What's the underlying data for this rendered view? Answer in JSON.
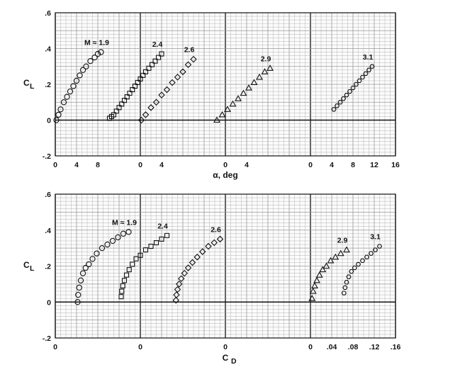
{
  "figure": {
    "background": "#ffffff",
    "grid_color": "#9a9a9a",
    "ink_color": "#111111"
  },
  "chart_data": [
    {
      "type": "scatter",
      "title": "",
      "ylabel": "C",
      "ylabel_sub": "L",
      "xlabel": "α, deg",
      "ylim": [
        -0.2,
        0.6
      ],
      "yticks": [
        ".6",
        ".4",
        ".2",
        "0",
        "-.2"
      ],
      "ytick_values": [
        0.6,
        0.4,
        0.2,
        0,
        -0.2
      ],
      "panels": [
        {
          "xlim": [
            0,
            16
          ],
          "ticks": [
            {
              "v": 0,
              "l": "0"
            },
            {
              "v": 4,
              "l": "4"
            },
            {
              "v": 8,
              "l": "8"
            }
          ]
        },
        {
          "xlim": [
            0,
            16
          ],
          "ticks": [
            {
              "v": 0,
              "l": "0"
            },
            {
              "v": 4,
              "l": "4"
            }
          ]
        },
        {
          "xlim": [
            0,
            16
          ],
          "ticks": [
            {
              "v": 0,
              "l": "0"
            },
            {
              "v": 4,
              "l": "4"
            }
          ]
        },
        {
          "xlim": [
            0,
            16
          ],
          "ticks": [
            {
              "v": 0,
              "l": "0"
            },
            {
              "v": 4,
              "l": "4"
            },
            {
              "v": 8,
              "l": "8"
            },
            {
              "v": 12,
              "l": "12"
            },
            {
              "v": 16,
              "l": "16"
            }
          ]
        }
      ],
      "grid": true,
      "series": [
        {
          "name": "M ≈ 1.9",
          "marker": "circle",
          "panel": 0,
          "x": [
            0.2,
            0.6,
            1.0,
            1.6,
            2.2,
            2.8,
            3.4,
            4.0,
            4.6,
            5.2,
            5.8,
            6.6,
            7.4,
            8.0,
            8.6
          ],
          "y": [
            0.0,
            0.03,
            0.06,
            0.1,
            0.13,
            0.16,
            0.19,
            0.22,
            0.25,
            0.28,
            0.3,
            0.33,
            0.35,
            0.37,
            0.38
          ]
        },
        {
          "name": "2.4",
          "marker": "square",
          "panel": 0,
          "x": [
            10.2,
            10.6,
            11.0,
            11.5,
            12.0,
            12.5,
            13.0,
            13.5,
            14.0,
            14.5,
            15.0,
            15.5,
            16.0,
            16.5,
            17.0,
            17.6,
            18.2,
            18.8,
            19.4,
            20.0
          ],
          "y": [
            0.01,
            0.02,
            0.03,
            0.05,
            0.07,
            0.09,
            0.11,
            0.13,
            0.15,
            0.17,
            0.19,
            0.21,
            0.23,
            0.25,
            0.27,
            0.29,
            0.31,
            0.33,
            0.35,
            0.37
          ]
        },
        {
          "name": "2.6",
          "marker": "diamond",
          "panel": 1,
          "x": [
            0.2,
            1.0,
            2.0,
            3.0,
            4.0,
            5.0,
            6.0,
            7.0,
            8.0,
            9.0,
            10.0
          ],
          "y": [
            0.0,
            0.03,
            0.07,
            0.1,
            0.14,
            0.17,
            0.21,
            0.24,
            0.27,
            0.31,
            0.34
          ]
        },
        {
          "name": "2.9",
          "marker": "triangle",
          "panel": 2,
          "x": [
            -1.6,
            -0.6,
            0.4,
            1.4,
            2.4,
            3.4,
            4.4,
            5.4,
            6.4,
            7.4,
            8.4
          ],
          "y": [
            0.0,
            0.03,
            0.06,
            0.09,
            0.12,
            0.15,
            0.18,
            0.21,
            0.24,
            0.27,
            0.29
          ]
        },
        {
          "name": "3.1",
          "marker": "hexagon",
          "panel": 3,
          "x": [
            4.4,
            5.0,
            5.6,
            6.2,
            6.8,
            7.4,
            8.0,
            8.6,
            9.2,
            9.8,
            10.4,
            11.0,
            11.6
          ],
          "y": [
            0.06,
            0.08,
            0.1,
            0.12,
            0.14,
            0.16,
            0.18,
            0.2,
            0.22,
            0.24,
            0.26,
            0.28,
            0.3
          ]
        }
      ]
    },
    {
      "type": "scatter",
      "title": "",
      "ylabel": "C",
      "ylabel_sub": "L",
      "xlabel": "C",
      "xlabel_sub": "D",
      "ylim": [
        -0.2,
        0.6
      ],
      "yticks": [
        ".6",
        ".4",
        ".2",
        "0",
        "-.2"
      ],
      "ytick_values": [
        0.6,
        0.4,
        0.2,
        0,
        -0.2
      ],
      "panels": [
        {
          "xlim": [
            0,
            0.16
          ],
          "ticks": [
            {
              "v": 0,
              "l": "0"
            }
          ]
        },
        {
          "xlim": [
            0,
            0.16
          ],
          "ticks": [
            {
              "v": 0,
              "l": "0"
            }
          ]
        },
        {
          "xlim": [
            0,
            0.16
          ],
          "ticks": [
            {
              "v": 0,
              "l": "0"
            }
          ]
        },
        {
          "xlim": [
            0,
            0.16
          ],
          "ticks": [
            {
              "v": 0,
              "l": "0"
            },
            {
              "v": 0.04,
              "l": ".04"
            },
            {
              "v": 0.08,
              "l": ".08"
            },
            {
              "v": 0.12,
              "l": ".12"
            },
            {
              "v": 0.16,
              "l": ".16"
            }
          ]
        }
      ],
      "grid": true,
      "series": [
        {
          "name": "M ≈ 1.9",
          "marker": "circle",
          "panel": 0,
          "x": [
            0.042,
            0.043,
            0.045,
            0.048,
            0.052,
            0.057,
            0.063,
            0.07,
            0.078,
            0.088,
            0.098,
            0.108,
            0.118,
            0.128,
            0.138
          ],
          "y": [
            0.0,
            0.04,
            0.08,
            0.12,
            0.16,
            0.19,
            0.21,
            0.24,
            0.27,
            0.3,
            0.32,
            0.34,
            0.36,
            0.38,
            0.39
          ]
        },
        {
          "name": "2.4",
          "marker": "square",
          "panel": 1,
          "x": [
            -0.036,
            -0.035,
            -0.033,
            -0.03,
            -0.026,
            -0.021,
            -0.015,
            -0.008,
            0.0,
            0.01,
            0.02,
            0.03,
            0.04,
            0.05
          ],
          "y": [
            0.03,
            0.06,
            0.09,
            0.12,
            0.15,
            0.18,
            0.21,
            0.24,
            0.26,
            0.29,
            0.31,
            0.33,
            0.35,
            0.37
          ]
        },
        {
          "name": "2.6",
          "marker": "diamond",
          "panel": 2,
          "x": [
            -0.093,
            -0.092,
            -0.09,
            -0.087,
            -0.083,
            -0.077,
            -0.07,
            -0.062,
            -0.053,
            -0.043,
            -0.032,
            -0.021,
            -0.01
          ],
          "y": [
            0.01,
            0.04,
            0.07,
            0.1,
            0.13,
            0.16,
            0.19,
            0.22,
            0.25,
            0.28,
            0.31,
            0.33,
            0.35
          ]
        },
        {
          "name": "2.9",
          "marker": "triangle",
          "panel": 3,
          "x": [
            0.003,
            0.005,
            0.008,
            0.012,
            0.017,
            0.023,
            0.03,
            0.038,
            0.047,
            0.057,
            0.068
          ],
          "y": [
            0.02,
            0.06,
            0.09,
            0.12,
            0.15,
            0.18,
            0.2,
            0.23,
            0.25,
            0.27,
            0.29
          ]
        },
        {
          "name": "3.1",
          "marker": "hexagon",
          "panel": 3,
          "x": [
            0.063,
            0.065,
            0.068,
            0.072,
            0.077,
            0.083,
            0.09,
            0.098,
            0.106,
            0.114,
            0.122,
            0.13
          ],
          "y": [
            0.05,
            0.08,
            0.11,
            0.14,
            0.17,
            0.19,
            0.21,
            0.23,
            0.25,
            0.27,
            0.29,
            0.31
          ]
        }
      ]
    }
  ]
}
